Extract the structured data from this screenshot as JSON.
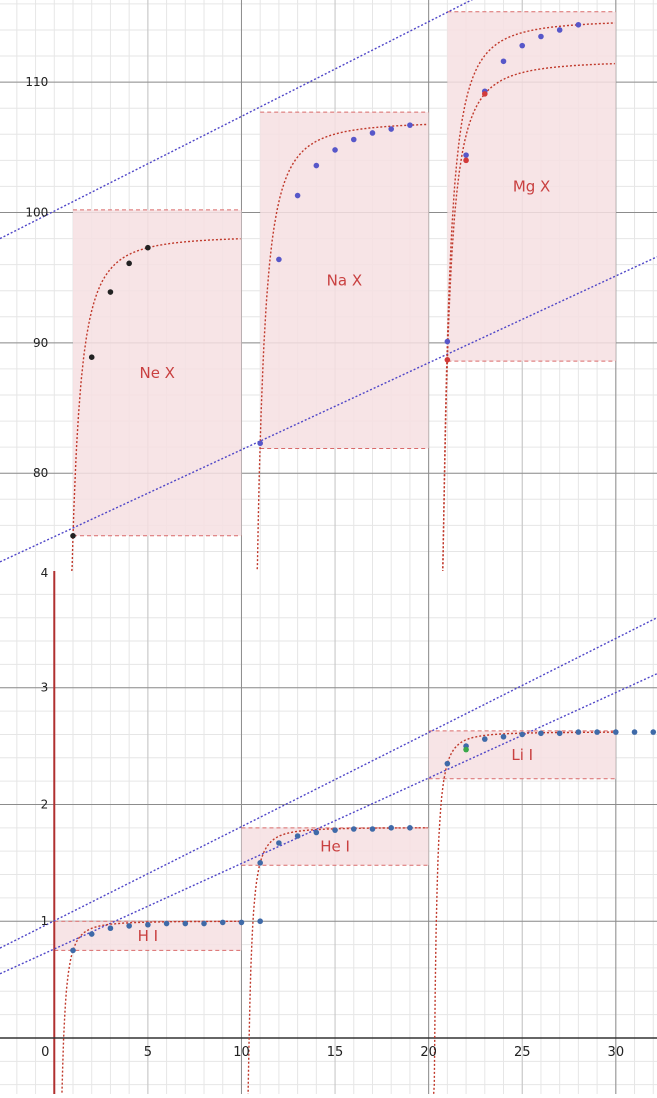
{
  "chart_data": [
    {
      "type": "scatter",
      "title": "",
      "xlabel": "",
      "ylabel": "",
      "xlim": [
        -2.9,
        32.2
      ],
      "ylim": [
        72.5,
        116.3
      ],
      "grid": true,
      "x_ticks": [],
      "y_ticks": [
        80,
        90,
        100,
        110
      ],
      "regions": [
        {
          "label": "Ne X",
          "x": [
            1,
            10
          ],
          "y": [
            75.2,
            100.2
          ],
          "color": "#f6dfe2"
        },
        {
          "label": "Na X",
          "x": [
            11,
            20
          ],
          "y": [
            81.9,
            107.7
          ],
          "color": "#f6dfe2"
        },
        {
          "label": "Mg X",
          "x": [
            21,
            30
          ],
          "y": [
            88.6,
            115.4
          ],
          "color": "#f6dfe2"
        }
      ],
      "series": [
        {
          "color": "#222222",
          "x": [
            1,
            2,
            3,
            4,
            5
          ],
          "y": [
            75.2,
            88.9,
            93.9,
            96.1,
            97.3
          ]
        },
        {
          "color": "#5757c9",
          "x": [
            11,
            12,
            13,
            14,
            15,
            16,
            17,
            18,
            19
          ],
          "y": [
            82.3,
            96.4,
            101.3,
            103.6,
            104.8,
            105.6,
            106.1,
            106.4,
            106.7
          ]
        },
        {
          "color": "#5757c9",
          "x": [
            21,
            22,
            23,
            24,
            25,
            26,
            27,
            28
          ],
          "y": [
            90.1,
            104.4,
            109.3,
            111.6,
            112.8,
            113.5,
            114.0,
            114.4
          ]
        },
        {
          "color": "#d23a3a",
          "x": [
            21,
            22,
            23
          ],
          "y": [
            88.7,
            104.0,
            109.1
          ]
        }
      ],
      "guide_lines": [
        {
          "color": "#4f46c8",
          "from": [
            -2.9,
            98.0
          ],
          "to": [
            32.2,
            123.5
          ]
        },
        {
          "color": "#4f46c8",
          "from": [
            -2.9,
            73.2
          ],
          "to": [
            32.2,
            96.6
          ]
        }
      ]
    },
    {
      "type": "scatter",
      "title": "",
      "xlabel": "",
      "ylabel": "",
      "xlim": [
        -2.9,
        32.2
      ],
      "ylim": [
        -0.48,
        4.0
      ],
      "grid": true,
      "x_ticks": [
        0,
        5,
        10,
        15,
        20,
        25,
        30
      ],
      "y_ticks": [
        1,
        2,
        3
      ],
      "y_tick_label_top": "4",
      "regions": [
        {
          "label": "H I",
          "x": [
            0,
            10
          ],
          "y": [
            0.75,
            1.0
          ],
          "color": "#f6dfe2"
        },
        {
          "label": "He I",
          "x": [
            10,
            20
          ],
          "y": [
            1.48,
            1.8
          ],
          "color": "#f6dfe2"
        },
        {
          "label": "Li I",
          "x": [
            20,
            30
          ],
          "y": [
            2.22,
            2.63
          ],
          "color": "#f6dfe2"
        }
      ],
      "series": [
        {
          "color": "#3f6aa8",
          "x": [
            1,
            2,
            3,
            4,
            5,
            6,
            7,
            8,
            9,
            10,
            11
          ],
          "y": [
            0.75,
            0.89,
            0.94,
            0.96,
            0.97,
            0.98,
            0.98,
            0.98,
            0.99,
            0.99,
            1.0
          ]
        },
        {
          "color": "#3f6aa8",
          "x": [
            11,
            12,
            13,
            14,
            15,
            16,
            17,
            18,
            19
          ],
          "y": [
            1.5,
            1.67,
            1.73,
            1.76,
            1.78,
            1.79,
            1.79,
            1.8,
            1.8
          ]
        },
        {
          "color": "#3f6aa8",
          "x": [
            21,
            22,
            23,
            24,
            25,
            26,
            27,
            28,
            29,
            30,
            31,
            32
          ],
          "y": [
            2.35,
            2.5,
            2.56,
            2.58,
            2.6,
            2.61,
            2.61,
            2.62,
            2.62,
            2.62,
            2.62,
            2.62
          ]
        },
        {
          "color": "#3aa84a",
          "x": [
            22
          ],
          "y": [
            2.47
          ]
        }
      ],
      "guide_lines": [
        {
          "color": "#4f46c8",
          "from": [
            -2.9,
            0.77
          ],
          "to": [
            32.2,
            3.6
          ]
        },
        {
          "color": "#4f46c8",
          "from": [
            -2.9,
            0.55
          ],
          "to": [
            32.2,
            3.12
          ]
        }
      ]
    }
  ]
}
